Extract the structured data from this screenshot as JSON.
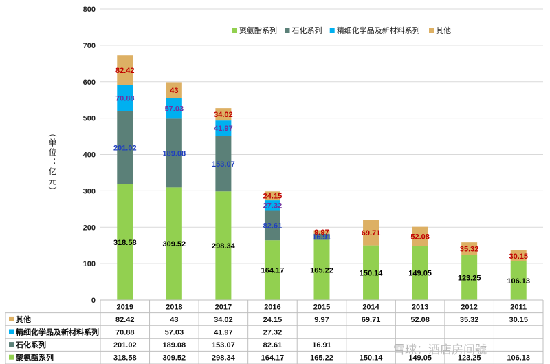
{
  "chart_data": {
    "type": "bar",
    "stacked": true,
    "categories": [
      "2019",
      "2018",
      "2017",
      "2016",
      "2015",
      "2014",
      "2013",
      "2012",
      "2011"
    ],
    "series": [
      {
        "name": "聚氨酯系列",
        "color": "#92d050",
        "labelColor": "#000000",
        "values": [
          318.58,
          309.52,
          298.34,
          164.17,
          165.22,
          150.14,
          149.05,
          123.25,
          106.13
        ]
      },
      {
        "name": "石化系列",
        "color": "#5b8078",
        "labelColor": "#1f3fbf",
        "values": [
          201.02,
          189.08,
          153.07,
          82.61,
          16.91,
          null,
          null,
          null,
          null
        ]
      },
      {
        "name": "精细化学品及新材料系列",
        "color": "#00b0f0",
        "labelColor": "#7030a0",
        "values": [
          70.88,
          57.03,
          41.97,
          27.32,
          null,
          null,
          null,
          null,
          null
        ]
      },
      {
        "name": "其他",
        "color": "#ddb064",
        "labelColor": "#c00000",
        "values": [
          82.42,
          43,
          34.02,
          24.15,
          9.97,
          69.71,
          52.08,
          35.32,
          30.15
        ]
      }
    ],
    "display": {
      "labels": [
        [
          "318.58",
          "309.52",
          "298.34",
          "164.17",
          "165.22",
          "150.14",
          "149.05",
          "123.25",
          "106.13"
        ],
        [
          "201.02",
          "189.08",
          "153.07",
          "82.61",
          "16.91",
          "",
          "",
          "",
          ""
        ],
        [
          "70.88",
          "57.03",
          "41.97",
          "27.32",
          "",
          "",
          "",
          "",
          ""
        ],
        [
          "82.42",
          "43",
          "34.02",
          "24.15",
          "9.97",
          "69.71",
          "52.08",
          "35.32",
          "30.15"
        ]
      ]
    },
    "ylim": [
      0,
      800
    ],
    "yticks": [
      "0",
      "100",
      "200",
      "300",
      "400",
      "500",
      "600",
      "700",
      "800"
    ],
    "ylabel": "（单位：亿元）",
    "legend_position": "top-right",
    "data_table": true
  },
  "watermark": "雪球：酒店房间號"
}
